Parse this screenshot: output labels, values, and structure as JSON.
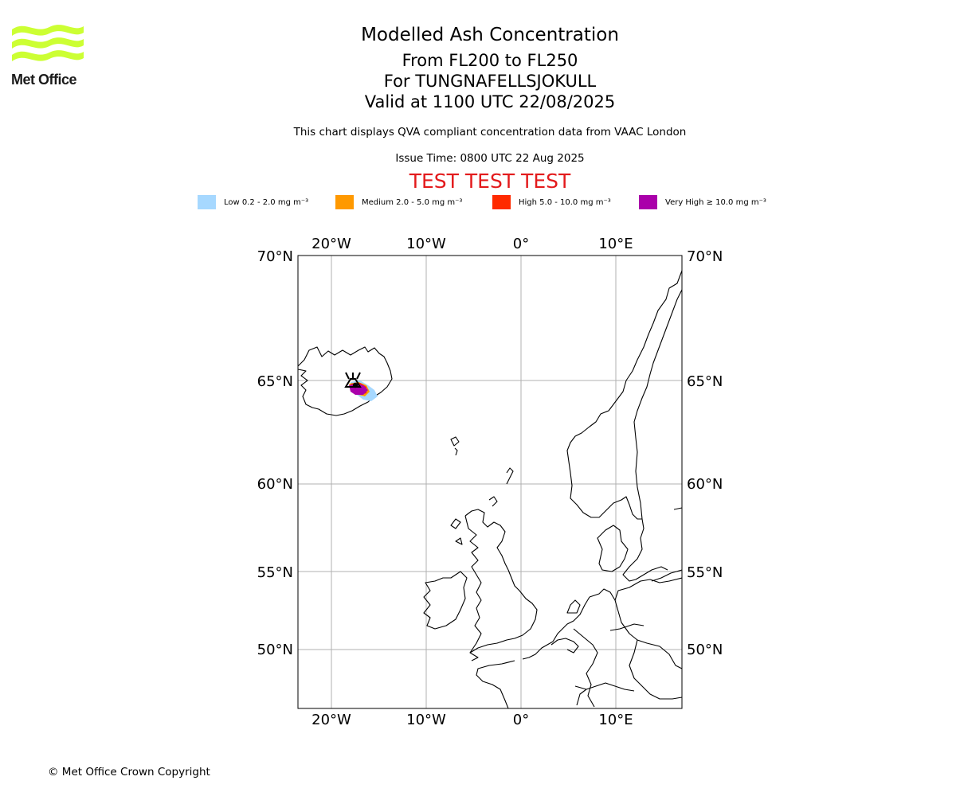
{
  "logo": {
    "text": "Met Office",
    "color": "#ccff33"
  },
  "titles": {
    "line1": "Modelled Ash Concentration",
    "line2": "From FL200 to FL250",
    "line3": "For TUNGNAFELLSJOKULL",
    "line4": "Valid at 1100 UTC 22/08/2025"
  },
  "note": "This chart displays QVA compliant concentration data from VAAC London",
  "issue_time": "Issue Time: 0800 UTC 22 Aug 2025",
  "test_banner": "TEST TEST TEST",
  "legend": [
    {
      "label": "Low 0.2 - 2.0 mg m⁻³",
      "color": "#a6d8ff"
    },
    {
      "label": "Medium 2.0 - 5.0 mg m⁻³",
      "color": "#ff9900"
    },
    {
      "label": "High 5.0 - 10.0 mg m⁻³",
      "color": "#ff2a00"
    },
    {
      "label": "Very High  ≥  10.0 mg m⁻³",
      "color": "#aa00aa"
    }
  ],
  "map": {
    "lon_ticks": [
      "20°W",
      "10°W",
      "0°",
      "10°E"
    ],
    "lat_ticks": [
      "70°N",
      "65°N",
      "60°N",
      "55°N",
      "50°N"
    ],
    "volcano_icon": "volcano-icon",
    "colors": {
      "grid": "#b0b0b0",
      "coast": "#000000"
    }
  },
  "copyright": "© Met Office Crown Copyright"
}
